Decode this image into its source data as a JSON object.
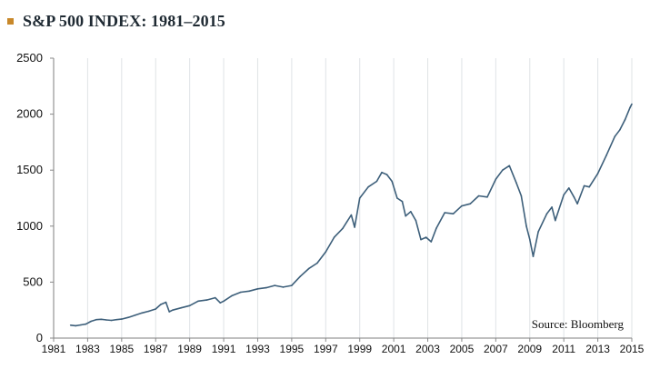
{
  "header": {
    "title": "S&P 500 INDEX:  1981–2015",
    "bullet_color": "#c8882a"
  },
  "chart_data": {
    "type": "line",
    "title": "S&P 500 INDEX:  1981–2015",
    "xlabel": "",
    "ylabel": "",
    "xlim": [
      1981,
      2015
    ],
    "ylim": [
      0,
      2500
    ],
    "x_ticks": [
      "1981",
      "1983",
      "1985",
      "1987",
      "1989",
      "1991",
      "1993",
      "1995",
      "1997",
      "1999",
      "2001",
      "2003",
      "2005",
      "2007",
      "2009",
      "2011",
      "2013",
      "2015"
    ],
    "y_ticks": [
      "0",
      "500",
      "1000",
      "1500",
      "2000",
      "2500"
    ],
    "grid": "vertical",
    "line_color": "#3d5f7a",
    "annotation": "Source: Bloomberg",
    "series": [
      {
        "x": [
          1982.0,
          1982.3,
          1982.6,
          1982.9,
          1983.2,
          1983.5,
          1983.8,
          1984.1,
          1984.4,
          1984.7,
          1985.0,
          1985.4,
          1985.8,
          1986.2,
          1986.6,
          1987.0,
          1987.3,
          1987.6,
          1987.8,
          1988.0,
          1988.5,
          1989.0,
          1989.5,
          1990.0,
          1990.5,
          1990.8,
          1991.0,
          1991.5,
          1992.0,
          1992.5,
          1993.0,
          1993.5,
          1994.0,
          1994.5,
          1995.0,
          1995.5,
          1996.0,
          1996.5,
          1997.0,
          1997.5,
          1998.0,
          1998.5,
          1998.7,
          1999.0,
          1999.5,
          2000.0,
          2000.3,
          2000.6,
          2000.9,
          2001.2,
          2001.5,
          2001.7,
          2002.0,
          2002.3,
          2002.6,
          2002.9,
          2003.2,
          2003.5,
          2004.0,
          2004.5,
          2005.0,
          2005.5,
          2006.0,
          2006.5,
          2007.0,
          2007.4,
          2007.8,
          2008.2,
          2008.5,
          2008.8,
          2009.0,
          2009.2,
          2009.5,
          2010.0,
          2010.3,
          2010.5,
          2011.0,
          2011.3,
          2011.6,
          2011.8,
          2012.2,
          2012.5,
          2013.0,
          2013.5,
          2014.0,
          2014.3,
          2014.6,
          2014.9,
          2015.0
        ],
        "y": [
          115,
          110,
          118,
          125,
          150,
          165,
          168,
          162,
          158,
          165,
          170,
          185,
          205,
          225,
          240,
          260,
          300,
          320,
          235,
          250,
          270,
          290,
          330,
          340,
          360,
          315,
          330,
          380,
          410,
          420,
          440,
          450,
          470,
          455,
          470,
          550,
          620,
          670,
          770,
          900,
          980,
          1100,
          990,
          1250,
          1350,
          1400,
          1480,
          1460,
          1400,
          1250,
          1220,
          1090,
          1130,
          1050,
          880,
          900,
          860,
          980,
          1120,
          1110,
          1180,
          1200,
          1270,
          1260,
          1420,
          1500,
          1540,
          1390,
          1270,
          1000,
          880,
          730,
          950,
          1110,
          1170,
          1050,
          1280,
          1340,
          1260,
          1200,
          1360,
          1350,
          1470,
          1630,
          1800,
          1860,
          1950,
          2060,
          2090
        ]
      }
    ]
  }
}
